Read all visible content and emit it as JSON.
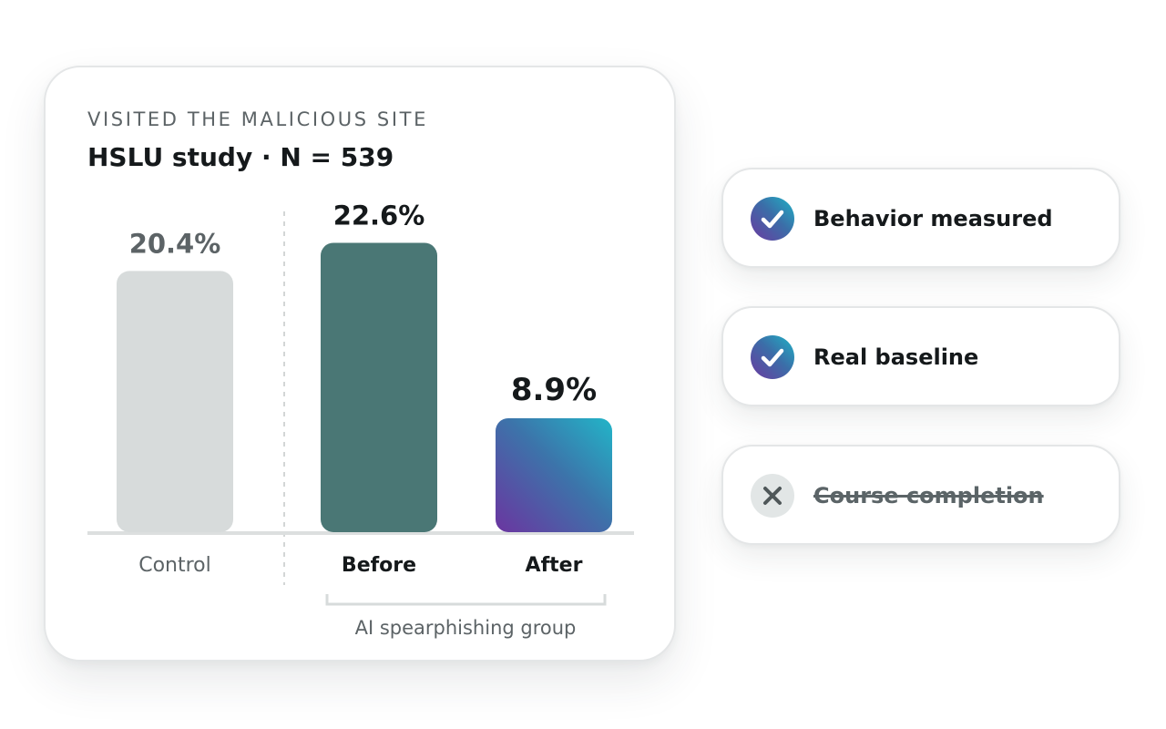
{
  "card": {
    "eyebrow": "VISITED THE MALICIOUS SITE",
    "title": "HSLU study · N = 539",
    "group_label": "AI spearphishing group"
  },
  "chart_data": {
    "type": "bar",
    "title": "VISITED THE MALICIOUS SITE",
    "subtitle": "HSLU study · N = 539",
    "xlabel": "",
    "ylabel": "",
    "unit": "%",
    "grid": false,
    "categories": [
      "Control",
      "Before",
      "After"
    ],
    "values": [
      20.4,
      22.6,
      8.9
    ],
    "value_labels": [
      "20.4%",
      "22.6%",
      "8.9%"
    ],
    "groups": [
      {
        "label": "AI spearphishing group",
        "categories": [
          "Before",
          "After"
        ]
      }
    ],
    "colors": {
      "Control": "#d7dbdb",
      "Before": "#4a7775",
      "After": [
        "#6b35a0",
        "#3c74aa",
        "#22b5c8"
      ]
    }
  },
  "checklist": {
    "items": [
      {
        "label": "Behavior measured",
        "status": "check",
        "icon": "check-icon",
        "struck": false
      },
      {
        "label": "Real baseline",
        "status": "check",
        "icon": "check-icon",
        "struck": false
      },
      {
        "label": "Course completion",
        "status": "cross",
        "icon": "close-icon",
        "struck": true
      }
    ]
  },
  "colors": {
    "text_dark": "#15191b",
    "text_muted": "#5c6366",
    "axis": "#dcdfdf",
    "card_border": "#e4e6e7"
  }
}
